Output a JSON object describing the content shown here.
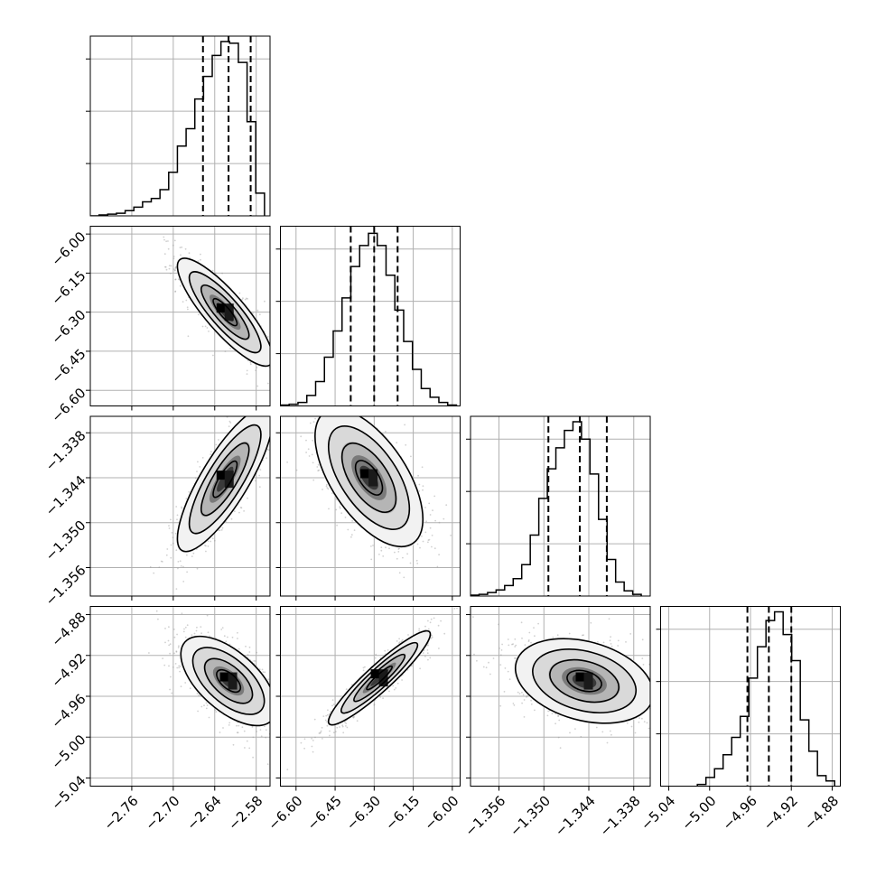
{
  "chart_data": {
    "type": "corner",
    "title": "",
    "grid": true,
    "parameters": [
      {
        "range": [
          -2.82,
          -2.56
        ],
        "ticks": [
          -2.76,
          -2.7,
          -2.64,
          -2.58
        ],
        "tick_labels": [
          "−2.76",
          "−2.70",
          "−2.64",
          "−2.58"
        ],
        "quantiles": [
          -2.657,
          -2.62,
          -2.588
        ],
        "hist_bins": [
          -2.82,
          -2.8074,
          -2.7948,
          -2.7822,
          -2.7696,
          -2.757,
          -2.7444,
          -2.7318,
          -2.7192,
          -2.7066,
          -2.694,
          -2.6814,
          -2.6688,
          -2.6562,
          -2.6436,
          -2.631,
          -2.6184,
          -2.6058,
          -2.5932,
          -2.5806,
          -2.568
        ],
        "hist_counts": [
          0.0,
          0.005,
          0.01,
          0.015,
          0.03,
          0.05,
          0.08,
          0.1,
          0.15,
          0.25,
          0.4,
          0.5,
          0.67,
          0.8,
          0.92,
          1.0,
          0.99,
          0.88,
          0.54,
          0.13
        ]
      },
      {
        "range": [
          -6.66,
          -5.97
        ],
        "ticks": [
          -6.6,
          -6.45,
          -6.3,
          -6.15,
          -6.0
        ],
        "tick_labels": [
          "−6.60",
          "−6.45",
          "−6.30",
          "−6.15",
          "−6.00"
        ],
        "quantiles": [
          -6.39,
          -6.3,
          -6.21
        ],
        "hist_bins": [
          -6.66,
          -6.6262,
          -6.5924,
          -6.5586,
          -6.5248,
          -6.491,
          -6.4572,
          -6.4234,
          -6.3896,
          -6.3558,
          -6.322,
          -6.2882,
          -6.2544,
          -6.2206,
          -6.1868,
          -6.153,
          -6.1192,
          -6.0854,
          -6.0516,
          -6.0178,
          -5.984
        ],
        "hist_counts": [
          0.005,
          0.01,
          0.02,
          0.06,
          0.14,
          0.28,
          0.43,
          0.62,
          0.8,
          0.92,
          0.99,
          0.92,
          0.75,
          0.55,
          0.37,
          0.21,
          0.1,
          0.05,
          0.02,
          0.005
        ]
      },
      {
        "range": [
          -1.3598,
          -1.3358
        ],
        "ticks": [
          -1.356,
          -1.35,
          -1.344,
          -1.338
        ],
        "tick_labels": [
          "−1.356",
          "−1.350",
          "−1.344",
          "−1.338"
        ],
        "quantiles": [
          -1.3494,
          -1.3452,
          -1.3416
        ],
        "hist_bins": [
          -1.3598,
          -1.35866,
          -1.35752,
          -1.35638,
          -1.35524,
          -1.3541,
          -1.35296,
          -1.35182,
          -1.35068,
          -1.34954,
          -1.3484,
          -1.34726,
          -1.34612,
          -1.34498,
          -1.34384,
          -1.3427,
          -1.34156,
          -1.34042,
          -1.33928,
          -1.33814,
          -1.337
        ],
        "hist_counts": [
          0.005,
          0.01,
          0.02,
          0.035,
          0.06,
          0.1,
          0.18,
          0.35,
          0.56,
          0.73,
          0.85,
          0.95,
          1.0,
          0.9,
          0.7,
          0.44,
          0.21,
          0.08,
          0.03,
          0.01
        ]
      },
      {
        "range": [
          -5.048,
          -4.872
        ],
        "ticks": [
          -5.04,
          -5.0,
          -4.96,
          -4.92,
          -4.88
        ],
        "tick_labels": [
          "−5.04",
          "−5.00",
          "−4.96",
          "−4.92",
          "−4.88"
        ],
        "quantiles": [
          -4.963,
          -4.942,
          -4.92
        ],
        "hist_bins": [
          -5.012,
          -5.0036,
          -4.9952,
          -4.9868,
          -4.9784,
          -4.97,
          -4.9616,
          -4.9532,
          -4.9448,
          -4.9364,
          -4.928,
          -4.9196,
          -4.9112,
          -4.9028,
          -4.8944,
          -4.886,
          -4.8776
        ],
        "hist_counts": [
          0.01,
          0.05,
          0.1,
          0.18,
          0.28,
          0.4,
          0.62,
          0.8,
          0.95,
          1.0,
          0.87,
          0.72,
          0.38,
          0.2,
          0.06,
          0.03
        ]
      }
    ],
    "pairs": [
      {
        "row": 1,
        "col": 0,
        "center": [
          -2.625,
          -6.3
        ],
        "sigma": [
          0.03,
          0.09
        ],
        "rho": -0.85
      },
      {
        "row": 2,
        "col": 0,
        "center": [
          -2.625,
          -1.3442
        ],
        "sigma": [
          0.03,
          0.0042
        ],
        "rho": 0.82
      },
      {
        "row": 2,
        "col": 1,
        "center": [
          -6.32,
          -1.344
        ],
        "sigma": [
          0.09,
          0.004
        ],
        "rho": -0.6
      },
      {
        "row": 3,
        "col": 0,
        "center": [
          -2.62,
          -4.945
        ],
        "sigma": [
          0.03,
          0.019
        ],
        "rho": -0.6
      },
      {
        "row": 3,
        "col": 1,
        "center": [
          -6.28,
          -4.942
        ],
        "sigma": [
          0.085,
          0.02
        ],
        "rho": 0.93
      },
      {
        "row": 3,
        "col": 2,
        "center": [
          -1.3446,
          -4.945
        ],
        "sigma": [
          0.004,
          0.018
        ],
        "rho": -0.3
      }
    ],
    "colors": {
      "line": "#000000",
      "grid": "#b0b0b0",
      "points": "#9a9a9a"
    }
  }
}
